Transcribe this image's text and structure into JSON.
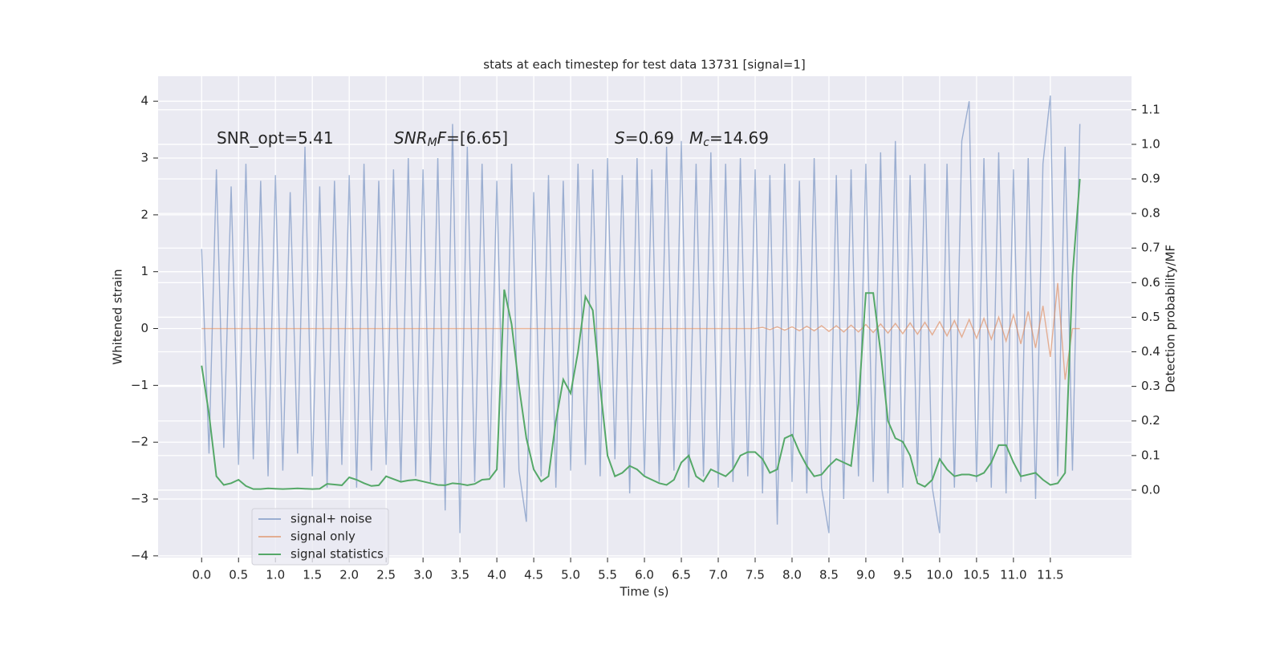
{
  "chart_data": {
    "type": "line",
    "title": "stats at each timestep for test data 13731 [signal=1]",
    "xlabel": "Time (s)",
    "ylabel": "Whitened strain",
    "y2label": "Detection probability/MF",
    "annotations": [
      [
        {
          "text": "SNR_opt=5.41"
        }
      ],
      [
        {
          "text": "SNR",
          "style": "italic"
        },
        {
          "text": "M",
          "style": "italic-sub"
        },
        {
          "text": "F",
          "style": "italic"
        },
        {
          "text": "=[6.65]"
        }
      ],
      [
        {
          "text": "S",
          "style": "italic"
        },
        {
          "text": "=0.69"
        }
      ],
      [
        {
          "text": "M",
          "style": "italic"
        },
        {
          "text": "c",
          "style": "italic-sub"
        },
        {
          "text": "=14.69"
        }
      ]
    ],
    "x": [
      0.0,
      0.1,
      0.2,
      0.3,
      0.4,
      0.5,
      0.6,
      0.7,
      0.8,
      0.9,
      1.0,
      1.1,
      1.2,
      1.3,
      1.4,
      1.5,
      1.6,
      1.7,
      1.8,
      1.9,
      2.0,
      2.1,
      2.2,
      2.3,
      2.4,
      2.5,
      2.6,
      2.7,
      2.8,
      2.9,
      3.0,
      3.1,
      3.2,
      3.3,
      3.4,
      3.5,
      3.6,
      3.7,
      3.8,
      3.9,
      4.0,
      4.1,
      4.2,
      4.3,
      4.4,
      4.5,
      4.6,
      4.7,
      4.8,
      4.9,
      5.0,
      5.1,
      5.2,
      5.3,
      5.4,
      5.5,
      5.6,
      5.7,
      5.8,
      5.9,
      6.0,
      6.1,
      6.2,
      6.3,
      6.4,
      6.5,
      6.6,
      6.7,
      6.8,
      6.9,
      7.0,
      7.1,
      7.2,
      7.3,
      7.4,
      7.5,
      7.6,
      7.7,
      7.8,
      7.9,
      8.0,
      8.1,
      8.2,
      8.3,
      8.4,
      8.5,
      8.6,
      8.7,
      8.8,
      8.9,
      9.0,
      9.1,
      9.2,
      9.3,
      9.4,
      9.5,
      9.6,
      9.7,
      9.8,
      9.9,
      10.0,
      10.1,
      10.2,
      10.3,
      10.4,
      10.5,
      10.6,
      10.7,
      10.8,
      10.9,
      11.0,
      11.1,
      11.2,
      11.3,
      11.4,
      11.5,
      11.6,
      11.7,
      11.8,
      11.9
    ],
    "series": [
      {
        "name": "signal+ noise",
        "color": "#4c72b0",
        "opacity": 0.5,
        "values": [
          1.4,
          -2.2,
          2.8,
          -2.1,
          2.5,
          -2.4,
          2.9,
          -2.3,
          2.6,
          -2.6,
          2.7,
          -2.5,
          2.4,
          -2.2,
          3.2,
          -2.6,
          2.5,
          -2.8,
          2.6,
          -2.4,
          2.7,
          -2.8,
          2.9,
          -2.5,
          2.6,
          -2.4,
          2.8,
          -2.7,
          3.0,
          -2.6,
          2.8,
          -2.7,
          3.0,
          -3.2,
          3.6,
          -3.6,
          3.2,
          -2.7,
          2.9,
          -2.6,
          2.6,
          -2.8,
          2.9,
          -2.5,
          -3.4,
          2.4,
          -2.6,
          2.7,
          -2.8,
          2.6,
          -2.5,
          2.9,
          -2.4,
          2.8,
          -2.6,
          3.0,
          -2.3,
          2.7,
          -2.9,
          3.0,
          -2.6,
          2.8,
          -2.7,
          3.2,
          -2.5,
          3.3,
          -2.8,
          2.9,
          -2.6,
          3.1,
          -2.8,
          2.9,
          -2.7,
          3.0,
          -2.6,
          2.8,
          -2.9,
          2.7,
          -3.45,
          2.9,
          -2.7,
          2.6,
          -2.9,
          3.0,
          -2.8,
          -3.6,
          2.7,
          -3.0,
          2.8,
          -2.6,
          2.9,
          -2.7,
          3.1,
          -2.9,
          3.3,
          -2.8,
          2.7,
          -2.6,
          2.9,
          -2.8,
          -3.6,
          2.9,
          -2.8,
          3.3,
          4.0,
          -2.7,
          3.0,
          -2.8,
          3.1,
          -2.9,
          2.8,
          -2.7,
          3.0,
          -3.0,
          2.9,
          4.1,
          -2.6,
          3.2,
          -2.5,
          3.6
        ]
      },
      {
        "name": "signal only",
        "color": "#dd8452",
        "opacity": 0.6,
        "values": [
          0,
          0,
          0,
          0,
          0,
          0,
          0,
          0,
          0,
          0,
          0,
          0,
          0,
          0,
          0,
          0,
          0,
          0,
          0,
          0,
          0,
          0,
          0,
          0,
          0,
          0,
          0,
          0,
          0,
          0,
          0,
          0,
          0,
          0,
          0,
          0,
          0,
          0,
          0,
          0,
          0,
          0,
          0,
          0,
          0,
          0,
          0,
          0,
          0,
          0,
          0,
          0,
          0,
          0,
          0,
          0,
          0,
          0,
          0,
          0,
          0,
          0,
          0,
          0,
          0,
          0,
          0,
          0,
          0,
          0,
          0,
          0,
          0,
          0,
          0,
          0,
          0.02,
          -0.02,
          0.03,
          -0.03,
          0.03,
          -0.04,
          0.04,
          -0.04,
          0.05,
          -0.05,
          0.05,
          -0.06,
          0.06,
          -0.06,
          0.07,
          -0.07,
          0.08,
          -0.08,
          0.09,
          -0.09,
          0.1,
          -0.1,
          0.11,
          -0.11,
          0.12,
          -0.13,
          0.14,
          -0.15,
          0.16,
          -0.17,
          0.18,
          -0.19,
          0.2,
          -0.22,
          0.24,
          -0.27,
          0.3,
          -0.34,
          0.4,
          -0.5,
          0.8,
          -0.9,
          0,
          0
        ]
      },
      {
        "name": "signal statistics",
        "color": "#55a868",
        "opacity": 1,
        "axis": "y2",
        "values": [
          0.36,
          0.22,
          0.04,
          0.015,
          0.02,
          0.03,
          0.012,
          0.003,
          0.003,
          0.005,
          0.004,
          0.003,
          0.004,
          0.005,
          0.004,
          0.003,
          0.004,
          0.018,
          0.016,
          0.014,
          0.037,
          0.03,
          0.02,
          0.012,
          0.014,
          0.04,
          0.032,
          0.024,
          0.028,
          0.03,
          0.025,
          0.02,
          0.015,
          0.014,
          0.02,
          0.018,
          0.014,
          0.018,
          0.03,
          0.032,
          0.06,
          0.58,
          0.48,
          0.3,
          0.15,
          0.06,
          0.025,
          0.04,
          0.2,
          0.32,
          0.28,
          0.4,
          0.56,
          0.52,
          0.3,
          0.1,
          0.04,
          0.05,
          0.07,
          0.06,
          0.04,
          0.03,
          0.02,
          0.015,
          0.03,
          0.08,
          0.1,
          0.04,
          0.025,
          0.06,
          0.05,
          0.04,
          0.06,
          0.1,
          0.11,
          0.11,
          0.09,
          0.05,
          0.06,
          0.15,
          0.16,
          0.11,
          0.07,
          0.04,
          0.045,
          0.07,
          0.09,
          0.08,
          0.07,
          0.25,
          0.57,
          0.57,
          0.4,
          0.2,
          0.15,
          0.14,
          0.1,
          0.02,
          0.01,
          0.03,
          0.09,
          0.06,
          0.04,
          0.045,
          0.045,
          0.04,
          0.05,
          0.08,
          0.13,
          0.13,
          0.08,
          0.04,
          0.045,
          0.05,
          0.03,
          0.015,
          0.02,
          0.05,
          0.62,
          0.9
        ]
      }
    ],
    "xlim": [
      -0.59,
      12.6
    ],
    "xticks": [
      {
        "value": 0,
        "label": "0.0"
      },
      0.5,
      {
        "value": 1,
        "label": "1.0"
      },
      1.5,
      {
        "value": 2,
        "label": "2.0"
      },
      2.5,
      {
        "value": 3,
        "label": "3.0"
      },
      3.5,
      {
        "value": 4,
        "label": "4.0"
      },
      4.5,
      {
        "value": 5,
        "label": "5.0"
      },
      5.5,
      {
        "value": 6,
        "label": "6.0"
      },
      6.5,
      {
        "value": 7,
        "label": "7.0"
      },
      7.5,
      {
        "value": 8,
        "label": "8.0"
      },
      8.5,
      {
        "value": 9,
        "label": "9.0"
      },
      9.5,
      {
        "value": 10,
        "label": "10.0"
      },
      10.5,
      {
        "value": 11,
        "label": "11.0"
      },
      11.5
    ],
    "ylim": [
      -4.03,
      4.44
    ],
    "yticks": [
      {
        "value": -4,
        "label": "−4"
      },
      {
        "value": -3,
        "label": "−3"
      },
      {
        "value": -2,
        "label": "−2"
      },
      {
        "value": -1,
        "label": "−1"
      },
      0,
      1,
      2,
      3,
      4
    ],
    "y2lim": [
      -0.195,
      1.197
    ],
    "y2ticks": [
      {
        "value": 0,
        "label": "0.0"
      },
      0.1,
      0.2,
      0.3,
      0.4,
      0.5,
      0.6,
      0.7,
      0.8,
      0.9,
      {
        "value": 1,
        "label": "1.0"
      },
      1.1
    ],
    "grid": true,
    "legend": "lower left"
  }
}
